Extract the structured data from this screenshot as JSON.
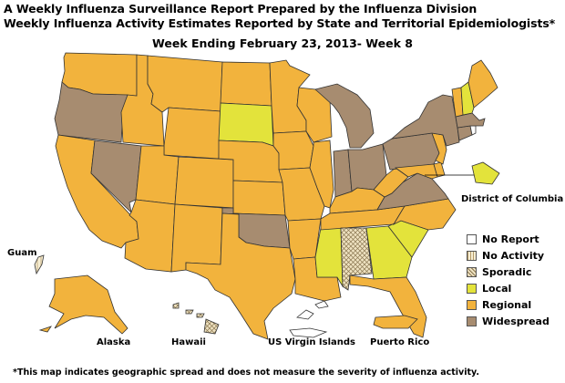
{
  "header": {
    "title_line1": "A Weekly Influenza Surveillance Report Prepared by the Influenza Division",
    "title_line2": "Weekly Influenza Activity Estimates Reported by State and Territorial Epidemiologists*",
    "week": "Week Ending February 23, 2013- Week 8"
  },
  "colors": {
    "no_report": "#ffffff",
    "no_activity": "#f7eed3",
    "sporadic": "#e9d9ad",
    "local": "#e3e33b",
    "regional": "#f2b33d",
    "widespread": "#a78c70",
    "border": "#333333"
  },
  "legend": [
    {
      "key": "no_report",
      "label": "No Report"
    },
    {
      "key": "no_activity",
      "label": "No Activity"
    },
    {
      "key": "sporadic",
      "label": "Sporadic"
    },
    {
      "key": "local",
      "label": "Local"
    },
    {
      "key": "regional",
      "label": "Regional"
    },
    {
      "key": "widespread",
      "label": "Widespread"
    }
  ],
  "states": {
    "WA": "regional",
    "OR": "widespread",
    "CA": "regional",
    "NV": "widespread",
    "ID": "regional",
    "MT": "regional",
    "WY": "regional",
    "UT": "regional",
    "AZ": "regional",
    "CO": "regional",
    "NM": "regional",
    "ND": "regional",
    "SD": "local",
    "NE": "regional",
    "KS": "regional",
    "OK": "widespread",
    "TX": "regional",
    "MN": "regional",
    "IA": "regional",
    "MO": "regional",
    "AR": "regional",
    "LA": "regional",
    "WI": "regional",
    "IL": "regional",
    "MS": "local",
    "MI": "widespread",
    "IN": "widespread",
    "OH": "widespread",
    "KY": "regional",
    "TN": "regional",
    "AL": "sporadic",
    "GA": "local",
    "FL": "regional",
    "SC": "local",
    "NC": "regional",
    "VA": "widespread",
    "WV": "regional",
    "PA": "widespread",
    "NY": "widespread",
    "ME": "regional",
    "VT": "regional",
    "NH": "local",
    "MA": "widespread",
    "CT": "widespread",
    "NJ": "regional",
    "DE": "regional",
    "MD": "regional",
    "DC": "local"
  },
  "territories": {
    "alaska": {
      "label": "Alaska",
      "status": "regional"
    },
    "hawaii": {
      "label": "Hawaii",
      "status": "sporadic"
    },
    "guam": {
      "label": "Guam",
      "status": "no_activity"
    },
    "virgin_islands": {
      "label": "US Virgin Islands",
      "status": "no_report"
    },
    "puerto_rico": {
      "label": "Puerto Rico",
      "status": "regional"
    },
    "dc": {
      "label": "District of Columbia",
      "status": "local"
    }
  },
  "footnote": "*This map indicates geographic spread and does not measure the severity of influenza activity."
}
